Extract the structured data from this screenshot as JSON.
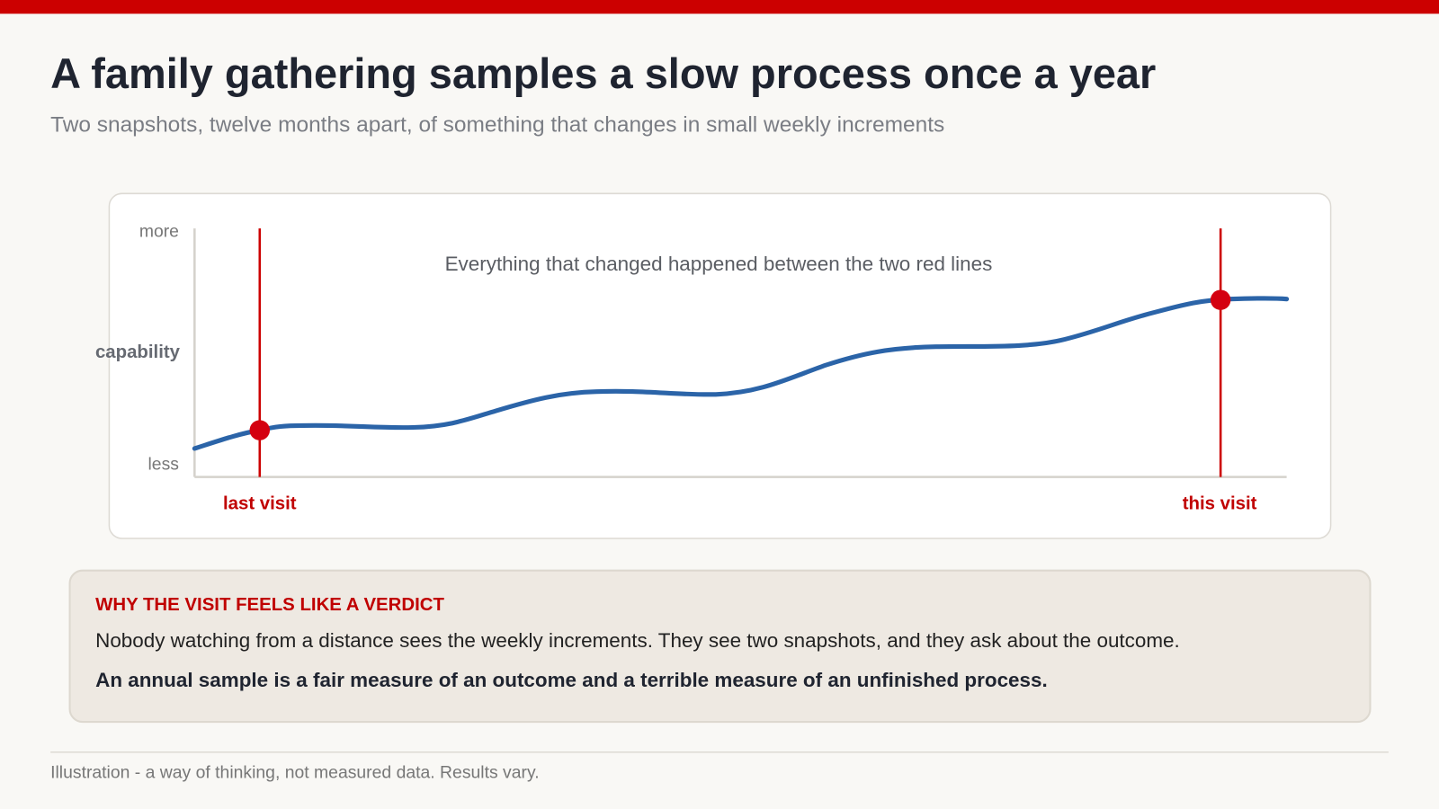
{
  "header": {
    "title": "A family gathering samples a slow process once a year",
    "subtitle": "Two snapshots, twelve months apart, of something that changes in small weekly increments"
  },
  "chart": {
    "axis_top": "more",
    "axis_middle": "capability",
    "axis_bottom": "less",
    "annotation": "Everything that changed happened between the two red lines",
    "markers": [
      "last visit",
      "this visit"
    ]
  },
  "callout": {
    "heading": "WHY THE VISIT FEELS LIKE A VERDICT",
    "body": "Nobody watching from a distance sees the weekly increments. They see two snapshots, and they ask about the outcome.",
    "emphasis": "An annual sample is a fair measure of an outcome and a terrible measure of an unfinished process."
  },
  "footer": {
    "note": "Illustration - a way of thinking, not measured data. Results vary."
  }
}
